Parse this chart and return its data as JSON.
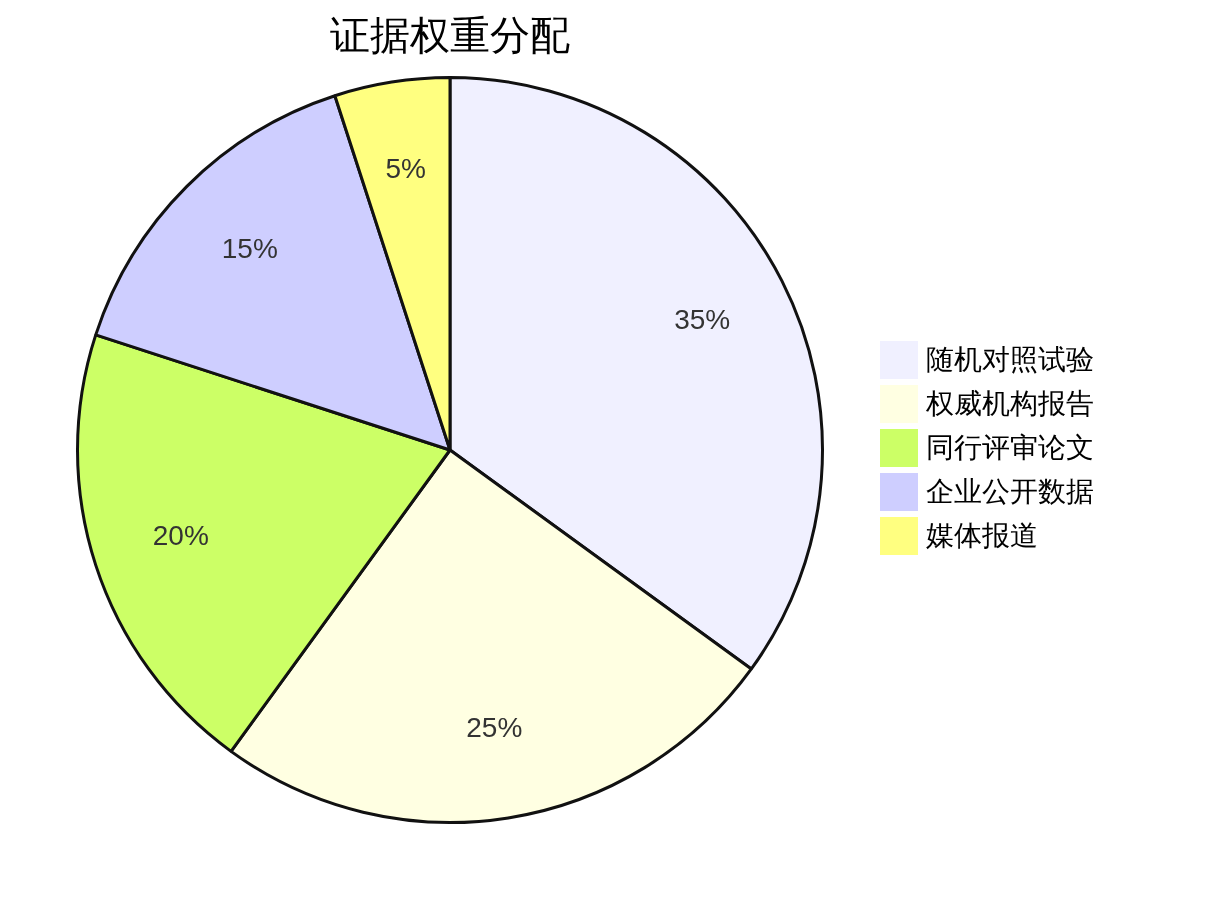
{
  "chart_data": {
    "type": "pie",
    "title": "证据权重分配",
    "categories": [
      "随机对照试验",
      "权威机构报告",
      "同行评审论文",
      "企业公开数据",
      "媒体报道"
    ],
    "values": [
      35,
      25,
      20,
      15,
      5
    ],
    "colors": [
      "#f0f0ff",
      "#ffffe2",
      "#ccff66",
      "#ceceff",
      "#ffff80"
    ],
    "value_labels": [
      "35%",
      "25%",
      "20%",
      "15%",
      "5%"
    ],
    "legend": "right"
  }
}
